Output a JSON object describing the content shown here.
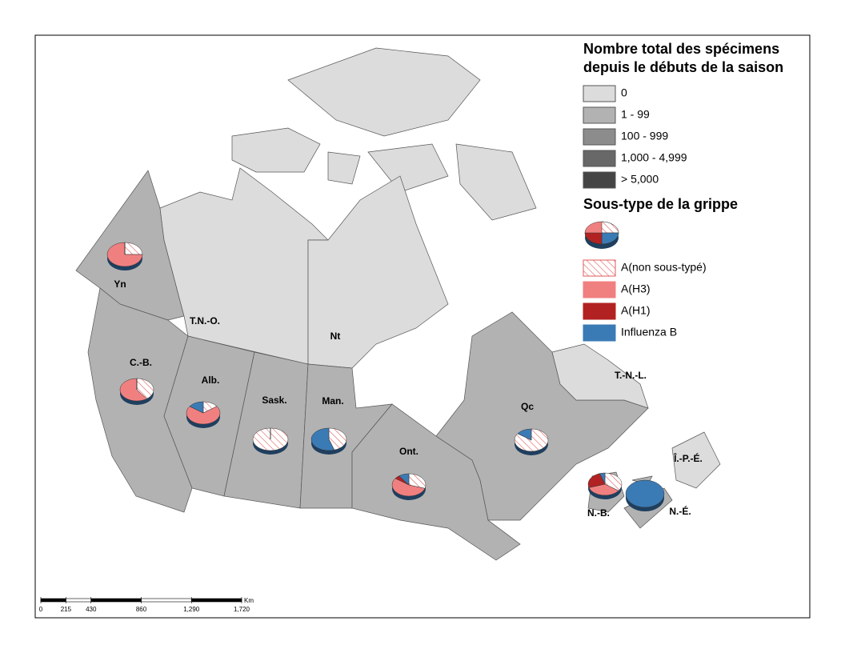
{
  "legend": {
    "title": [
      "Nombre total des spécimens",
      "depuis le débuts de la saison"
    ],
    "classes": [
      {
        "label": "0",
        "color": "#dcdcdc"
      },
      {
        "label": "1 - 99",
        "color": "#b2b2b2"
      },
      {
        "label": "100 - 999",
        "color": "#8c8c8c"
      },
      {
        "label": "1,000 - 4,999",
        "color": "#686868"
      },
      {
        "label": "> 5,000",
        "color": "#444444"
      }
    ],
    "subtype_title": "Sous-type de la grippe",
    "subtypes": [
      {
        "label": "A(non sous-typé)",
        "color": "#e05a5a",
        "pattern": "hatch"
      },
      {
        "label": "A(H3)",
        "color": "#f08080"
      },
      {
        "label": "A(H1)",
        "color": "#b22222"
      },
      {
        "label": "Influenza B",
        "color": "#3b7bb5"
      }
    ]
  },
  "regions": [
    {
      "label": "Yn",
      "class": 1,
      "shares": [
        25,
        75,
        0,
        0
      ]
    },
    {
      "label": "T.N.-O.",
      "class": 0
    },
    {
      "label": "Nt",
      "class": 0
    },
    {
      "label": "C.-B.",
      "class": 1,
      "shares": [
        40,
        60,
        0,
        0
      ]
    },
    {
      "label": "Alb.",
      "class": 1,
      "shares": [
        15,
        70,
        0,
        15
      ]
    },
    {
      "label": "Sask.",
      "class": 1,
      "shares": [
        100,
        0,
        0,
        0
      ]
    },
    {
      "label": "Man.",
      "class": 1,
      "shares": [
        45,
        0,
        0,
        55
      ]
    },
    {
      "label": "Ont.",
      "class": 1,
      "shares": [
        30,
        55,
        5,
        10
      ]
    },
    {
      "label": "Qc",
      "class": 1,
      "shares": [
        85,
        0,
        0,
        15
      ]
    },
    {
      "label": "T.-N.-L.",
      "class": 0
    },
    {
      "label": "N.-B.",
      "class": 1,
      "shares": [
        35,
        35,
        25,
        5
      ]
    },
    {
      "label": "N.-É.",
      "class": 1,
      "shares": [
        0,
        0,
        0,
        100
      ]
    },
    {
      "label": "Î.-P.-É.",
      "class": 1
    }
  ],
  "scale_bar": {
    "unit": "Km",
    "ticks": [
      0,
      215,
      430,
      860,
      {
        "value": 1290,
        "label": "1,290"
      },
      {
        "value": 1720,
        "label": "1,720"
      }
    ]
  }
}
